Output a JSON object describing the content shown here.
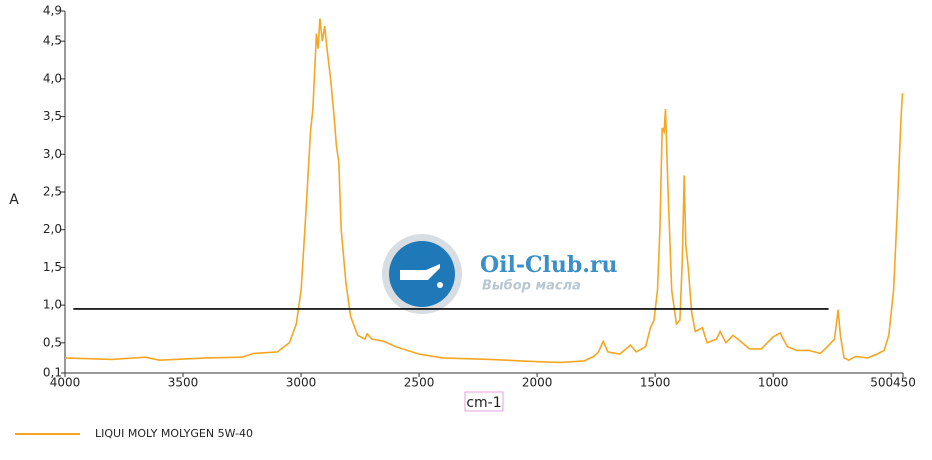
{
  "chart_data": {
    "type": "line",
    "x_label": "cm-1",
    "y_label": "A",
    "xlim": [
      4000,
      450
    ],
    "xticks": [
      4000,
      3500,
      3000,
      2500,
      2000,
      1500,
      1000,
      500,
      450
    ],
    "ylim": [
      0.1,
      4.9
    ],
    "yticks": [
      {
        "value": 0.1,
        "label": "0,1"
      },
      {
        "value": 0.5,
        "label": "0,5"
      },
      {
        "value": 1.0,
        "label": "1,0"
      },
      {
        "value": 1.5,
        "label": "1,5"
      },
      {
        "value": 2.0,
        "label": "2,0"
      },
      {
        "value": 2.5,
        "label": "2,5"
      },
      {
        "value": 3.0,
        "label": "3,0"
      },
      {
        "value": 3.5,
        "label": "3,5"
      },
      {
        "value": 4.0,
        "label": "4,0"
      },
      {
        "value": 4.5,
        "label": "4,5"
      },
      {
        "value": 4.9,
        "label": "4,9"
      }
    ],
    "series": [
      {
        "name": "LIQUI MOLY MOLYGEN 5W-40",
        "color": "#f5a623",
        "x": [
          4000,
          3800,
          3660,
          3600,
          3400,
          3250,
          3200,
          3100,
          3050,
          3020,
          3000,
          2980,
          2960,
          2950,
          2935,
          2928,
          2920,
          2910,
          2900,
          2890,
          2875,
          2860,
          2850,
          2840,
          2830,
          2810,
          2790,
          2760,
          2730,
          2720,
          2700,
          2650,
          2600,
          2500,
          2400,
          2200,
          2000,
          1900,
          1800,
          1760,
          1740,
          1720,
          1700,
          1650,
          1605,
          1580,
          1540,
          1520,
          1505,
          1490,
          1480,
          1470,
          1462,
          1456,
          1445,
          1430,
          1410,
          1395,
          1385,
          1377,
          1370,
          1360,
          1345,
          1330,
          1300,
          1280,
          1240,
          1225,
          1200,
          1170,
          1150,
          1100,
          1050,
          1000,
          970,
          940,
          900,
          850,
          800,
          770,
          740,
          725,
          715,
          700,
          680,
          650,
          600,
          560,
          530,
          510,
          490,
          475,
          465,
          458,
          452
        ],
        "values": [
          0.3,
          0.28,
          0.31,
          0.27,
          0.3,
          0.31,
          0.36,
          0.38,
          0.5,
          0.75,
          1.2,
          2.2,
          3.3,
          3.6,
          4.6,
          4.4,
          4.8,
          4.5,
          4.7,
          4.4,
          4.0,
          3.5,
          3.1,
          2.9,
          2.0,
          1.3,
          0.85,
          0.6,
          0.55,
          0.62,
          0.55,
          0.52,
          0.45,
          0.35,
          0.3,
          0.28,
          0.25,
          0.24,
          0.26,
          0.32,
          0.38,
          0.52,
          0.38,
          0.35,
          0.47,
          0.38,
          0.45,
          0.7,
          0.8,
          1.2,
          2.0,
          3.35,
          3.3,
          3.6,
          2.5,
          1.2,
          0.75,
          0.8,
          1.6,
          2.72,
          1.8,
          1.5,
          0.9,
          0.65,
          0.7,
          0.5,
          0.55,
          0.65,
          0.5,
          0.6,
          0.55,
          0.42,
          0.42,
          0.58,
          0.63,
          0.45,
          0.4,
          0.4,
          0.36,
          0.45,
          0.55,
          0.94,
          0.6,
          0.3,
          0.27,
          0.32,
          0.3,
          0.35,
          0.4,
          0.6,
          1.2,
          2.2,
          3.0,
          3.5,
          3.81
        ]
      }
    ],
    "reference_line": {
      "color": "#000000",
      "x": [
        3965,
        765
      ],
      "values": [
        0.95,
        0.95
      ]
    },
    "watermark": {
      "title": "Oil-Club.ru",
      "subtitle": "Выбор масла"
    },
    "legend": "bottom-left"
  }
}
